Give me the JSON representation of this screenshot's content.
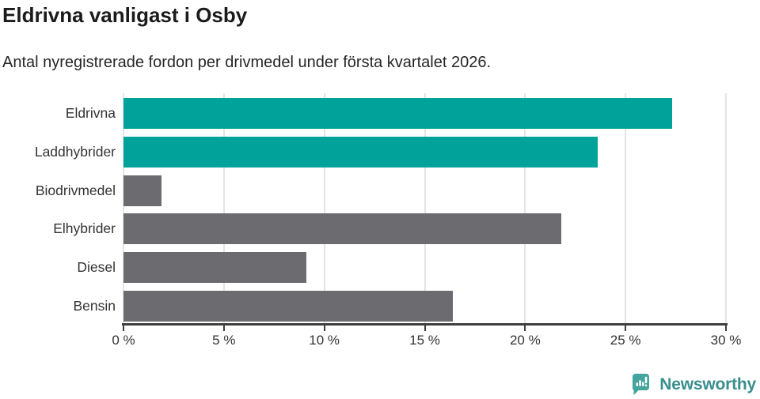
{
  "header": {
    "title": "Eldrivna vanligast i Osby",
    "subtitle": "Antal nyregistrerade fordon per drivmedel under första kvartalet 2026."
  },
  "chart_data": {
    "type": "bar",
    "orientation": "horizontal",
    "title": "Eldrivna vanligast i Osby",
    "subtitle": "Antal nyregistrerade fordon per drivmedel under första kvartalet 2026.",
    "categories": [
      "Eldrivna",
      "Laddhybrider",
      "Biodrivmedel",
      "Elhybrider",
      "Diesel",
      "Bensin"
    ],
    "values": [
      27.3,
      23.6,
      1.9,
      21.8,
      9.1,
      16.4
    ],
    "unit": "%",
    "xlim": [
      0,
      30
    ],
    "x_ticks": [
      0,
      5,
      10,
      15,
      20,
      25,
      30
    ],
    "x_tick_labels": [
      "0 %",
      "5 %",
      "10 %",
      "15 %",
      "20 %",
      "25 %",
      "30 %"
    ],
    "grid": true,
    "legend": false,
    "colors": {
      "highlight": "#00a29a",
      "default": "#6c6b70",
      "bar_colors": [
        "#00a29a",
        "#00a29a",
        "#6c6b70",
        "#6c6b70",
        "#6c6b70",
        "#6c6b70"
      ]
    }
  },
  "footer": {
    "brand": "Newsworthy",
    "brand_color": "#3a8e8e",
    "logo_color": "#44a49e",
    "logo_icon": "newsworthy-speech-bubble-bar-chart"
  }
}
